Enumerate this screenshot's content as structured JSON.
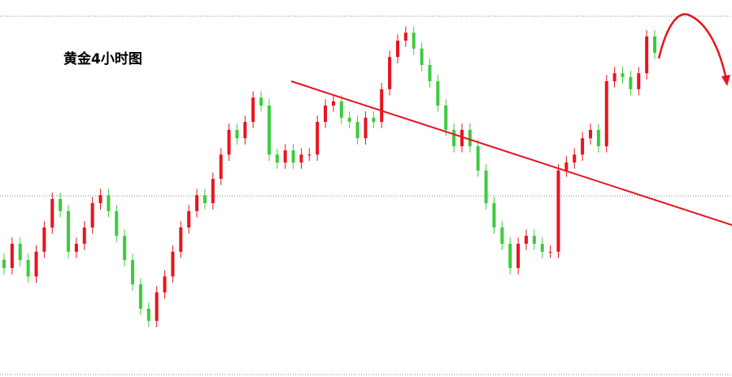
{
  "chart_data": {
    "type": "candlestick",
    "title": "黄金4小时图",
    "up_color": "#e8141e",
    "down_color": "#3ccc3c",
    "ylim": [
      1200,
      1290
    ],
    "open": [
      1228.0,
      1226.0,
      1231.8,
      1227.9,
      1224.0,
      1229.9,
      1235.7,
      1242.5,
      1239.6,
      1229.9,
      1231.8,
      1235.7,
      1241.5,
      1243.4,
      1239.6,
      1233.7,
      1227.9,
      1222.1,
      1216.3,
      1213.4,
      1220.2,
      1224.0,
      1229.9,
      1235.7,
      1239.6,
      1243.4,
      1241.5,
      1247.3,
      1253.1,
      1259.0,
      1257.0,
      1260.9,
      1266.7,
      1264.8,
      1253.1,
      1251.2,
      1254.1,
      1251.2,
      1253.1,
      1253.1,
      1260.9,
      1264.8,
      1265.8,
      1261.9,
      1260.9,
      1257.0,
      1261.9,
      1260.9,
      1268.7,
      1276.4,
      1280.3,
      1282.2,
      1278.4,
      1274.5,
      1270.6,
      1264.8,
      1259.0,
      1255.1,
      1259.0,
      1255.1,
      1249.3,
      1241.5,
      1235.7,
      1231.8,
      1226.0,
      1231.8,
      1233.7,
      1231.8,
      1229.9,
      1229.9,
      1249.3,
      1251.2,
      1253.1,
      1257.0,
      1259.0,
      1255.1,
      1270.6,
      1272.5,
      1271.6,
      1268.7,
      1272.5,
      1281.3
    ],
    "high": [
      1229.5,
      1233.3,
      1233.3,
      1229.4,
      1231.4,
      1237.2,
      1244.0,
      1244.0,
      1241.1,
      1233.3,
      1237.2,
      1243.0,
      1244.9,
      1244.9,
      1241.1,
      1235.2,
      1229.4,
      1223.6,
      1217.8,
      1221.7,
      1225.5,
      1231.4,
      1237.2,
      1241.1,
      1244.9,
      1244.9,
      1248.8,
      1254.6,
      1260.5,
      1260.5,
      1262.4,
      1268.2,
      1268.2,
      1266.3,
      1254.6,
      1255.6,
      1255.6,
      1254.6,
      1254.6,
      1262.4,
      1266.3,
      1267.3,
      1267.3,
      1263.4,
      1262.4,
      1263.4,
      1263.4,
      1270.2,
      1277.9,
      1281.8,
      1283.7,
      1283.7,
      1279.9,
      1276.0,
      1272.1,
      1266.3,
      1260.5,
      1260.5,
      1260.5,
      1256.6,
      1250.8,
      1243.0,
      1237.2,
      1233.3,
      1233.3,
      1235.2,
      1235.2,
      1233.3,
      1231.4,
      1250.8,
      1252.7,
      1254.6,
      1258.5,
      1260.5,
      1260.5,
      1272.1,
      1274.0,
      1274.0,
      1273.1,
      1274.0,
      1282.8,
      1282.8
    ],
    "low": [
      1224.5,
      1224.5,
      1226.4,
      1222.5,
      1222.5,
      1228.4,
      1234.2,
      1238.1,
      1228.4,
      1228.4,
      1230.3,
      1234.2,
      1240.0,
      1238.1,
      1232.2,
      1226.4,
      1220.6,
      1214.8,
      1211.9,
      1211.9,
      1218.7,
      1222.5,
      1228.4,
      1234.2,
      1238.1,
      1240.0,
      1240.0,
      1245.8,
      1251.6,
      1255.5,
      1255.5,
      1259.4,
      1263.3,
      1251.6,
      1249.7,
      1249.7,
      1249.7,
      1249.7,
      1251.6,
      1251.6,
      1259.4,
      1263.3,
      1260.4,
      1259.4,
      1255.5,
      1255.5,
      1259.4,
      1259.4,
      1267.2,
      1274.9,
      1278.8,
      1276.9,
      1273.0,
      1269.1,
      1263.3,
      1257.5,
      1253.6,
      1253.6,
      1253.6,
      1247.8,
      1240.0,
      1234.2,
      1230.3,
      1224.5,
      1224.5,
      1230.3,
      1230.3,
      1228.4,
      1228.4,
      1228.4,
      1247.8,
      1249.7,
      1251.6,
      1255.5,
      1253.6,
      1253.6,
      1269.1,
      1270.1,
      1267.2,
      1267.2,
      1271.0,
      1275.9
    ],
    "close": [
      1226.0,
      1231.8,
      1227.9,
      1224.0,
      1229.9,
      1235.7,
      1242.5,
      1239.6,
      1229.9,
      1231.8,
      1235.7,
      1241.5,
      1243.4,
      1239.6,
      1233.7,
      1227.9,
      1222.1,
      1216.3,
      1213.4,
      1220.2,
      1224.0,
      1229.9,
      1235.7,
      1239.6,
      1243.4,
      1241.5,
      1247.3,
      1253.1,
      1259.0,
      1257.0,
      1260.9,
      1266.7,
      1264.8,
      1253.1,
      1251.2,
      1254.1,
      1251.2,
      1253.1,
      1253.1,
      1260.9,
      1264.8,
      1265.8,
      1261.9,
      1260.9,
      1257.0,
      1261.9,
      1260.9,
      1268.7,
      1276.4,
      1280.3,
      1282.2,
      1278.4,
      1274.5,
      1270.6,
      1264.8,
      1259.0,
      1255.1,
      1259.0,
      1255.1,
      1249.3,
      1241.5,
      1235.7,
      1231.8,
      1226.0,
      1231.8,
      1233.7,
      1231.8,
      1229.9,
      1229.9,
      1249.3,
      1251.2,
      1253.1,
      1257.0,
      1259.0,
      1255.1,
      1270.6,
      1272.5,
      1271.6,
      1268.7,
      1272.5,
      1281.3,
      1277.4
    ]
  }
}
